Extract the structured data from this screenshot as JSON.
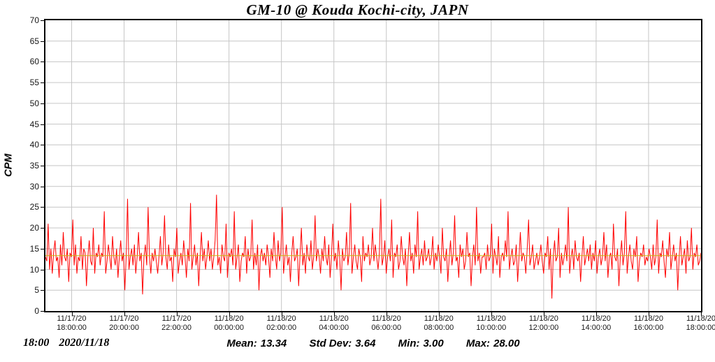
{
  "chart_data": {
    "type": "line",
    "title": "GM-10 @ Kouda Kochi-city, JAPN",
    "ylabel": "CPM",
    "ylim": [
      0,
      70
    ],
    "y_ticks": [
      0,
      5,
      10,
      15,
      20,
      25,
      30,
      35,
      40,
      45,
      50,
      55,
      60,
      65,
      70
    ],
    "grid": true,
    "x_axis": {
      "span_hours": 25,
      "first_tick_offset_hours": 1,
      "tick_step_hours": 2,
      "range": [
        "11/17/20 17:00:00",
        "11/18/20 18:00:00"
      ]
    },
    "x_ticks": [
      {
        "date": "11/17/20",
        "time": "18:00:00"
      },
      {
        "date": "11/17/20",
        "time": "20:00:00"
      },
      {
        "date": "11/17/20",
        "time": "22:00:00"
      },
      {
        "date": "11/18/20",
        "time": "00:00:00"
      },
      {
        "date": "11/18/20",
        "time": "02:00:00"
      },
      {
        "date": "11/18/20",
        "time": "04:00:00"
      },
      {
        "date": "11/18/20",
        "time": "06:00:00"
      },
      {
        "date": "11/18/20",
        "time": "08:00:00"
      },
      {
        "date": "11/18/20",
        "time": "10:00:00"
      },
      {
        "date": "11/18/20",
        "time": "12:00:00"
      },
      {
        "date": "11/18/20",
        "time": "14:00:00"
      },
      {
        "date": "11/18/20",
        "time": "16:00:00"
      },
      {
        "date": "11/18/20",
        "time": "18:00:00"
      }
    ],
    "colors": {
      "trace": "#ff0000",
      "mean_line": "#c9b50a",
      "grid": "#c6c6c6",
      "axis": "#000000"
    },
    "mean_line": {
      "value": 13.34,
      "color": "#c9b50a"
    },
    "series": [
      {
        "name": "CPM",
        "color": "#ff0000",
        "values": [
          13,
          12,
          21,
          10,
          15,
          9,
          14,
          17,
          12,
          13,
          8,
          16,
          11,
          19,
          13,
          12,
          15,
          7,
          14,
          13,
          22,
          11,
          16,
          9,
          13,
          12,
          18,
          10,
          15,
          14,
          6,
          13,
          17,
          12,
          11,
          20,
          9,
          14,
          13,
          16,
          11,
          14,
          13,
          24,
          9,
          12,
          16,
          13,
          10,
          18,
          13,
          11,
          15,
          8,
          13,
          17,
          12,
          14,
          5,
          13,
          27,
          10,
          13,
          15,
          11,
          16,
          9,
          13,
          19,
          12,
          14,
          4,
          13,
          16,
          11,
          25,
          13,
          9,
          14,
          12,
          15,
          12,
          9,
          13,
          18,
          11,
          14,
          23,
          13,
          10,
          16,
          12,
          13,
          7,
          15,
          13,
          20,
          9,
          12,
          14,
          11,
          17,
          13,
          8,
          15,
          12,
          26,
          10,
          13,
          16,
          11,
          14,
          6,
          13,
          19,
          12,
          15,
          10,
          13,
          17,
          12,
          15,
          10,
          13,
          17,
          28,
          11,
          13,
          9,
          16,
          13,
          12,
          21,
          8,
          14,
          13,
          15,
          11,
          24,
          10,
          13,
          16,
          7,
          12,
          14,
          13,
          18,
          9,
          15,
          12,
          13,
          22,
          10,
          14,
          11,
          16,
          5,
          13,
          15,
          12,
          14,
          11,
          16,
          13,
          8,
          15,
          12,
          19,
          13,
          10,
          17,
          12,
          14,
          25,
          9,
          13,
          16,
          11,
          13,
          7,
          14,
          18,
          12,
          13,
          15,
          6,
          13,
          20,
          11,
          14,
          9,
          16,
          13,
          12,
          17,
          10,
          13,
          23,
          12,
          15,
          13,
          9,
          15,
          12,
          18,
          13,
          11,
          16,
          8,
          13,
          21,
          12,
          14,
          10,
          17,
          13,
          5,
          15,
          12,
          13,
          19,
          11,
          14,
          26,
          9,
          13,
          16,
          12,
          10,
          15,
          13,
          7,
          18,
          12,
          14,
          13,
          16,
          11,
          13,
          20,
          12,
          16,
          13,
          10,
          14,
          27,
          11,
          13,
          17,
          9,
          13,
          15,
          12,
          22,
          8,
          14,
          13,
          16,
          10,
          12,
          18,
          13,
          11,
          15,
          6,
          13,
          19,
          12,
          14,
          9,
          16,
          13,
          24,
          10,
          13,
          15,
          11,
          17,
          12,
          13,
          15,
          11,
          13,
          18,
          10,
          14,
          12,
          16,
          13,
          9,
          20,
          13,
          12,
          15,
          7,
          13,
          17,
          11,
          14,
          23,
          12,
          13,
          8,
          16,
          13,
          15,
          10,
          12,
          19,
          13,
          14,
          6,
          13,
          16,
          11,
          25,
          12,
          14,
          9,
          13,
          13,
          14,
          10,
          16,
          12,
          13,
          21,
          9,
          15,
          13,
          11,
          18,
          8,
          13,
          14,
          12,
          17,
          13,
          24,
          10,
          13,
          15,
          11,
          12,
          16,
          7,
          13,
          19,
          12,
          14,
          13,
          9,
          15,
          22,
          11,
          13,
          16,
          10,
          12,
          14,
          11,
          13,
          16,
          12,
          9,
          14,
          13,
          18,
          10,
          15,
          3,
          13,
          17,
          12,
          13,
          20,
          8,
          14,
          11,
          13,
          16,
          12,
          25,
          9,
          13,
          15,
          10,
          17,
          13,
          12,
          14,
          7,
          13,
          18,
          11,
          13,
          15,
          12,
          16,
          10,
          14,
          12,
          17,
          9,
          13,
          15,
          11,
          13,
          19,
          12,
          16,
          8,
          13,
          14,
          10,
          21,
          13,
          12,
          15,
          6,
          13,
          17,
          11,
          14,
          24,
          9,
          13,
          16,
          12,
          10,
          15,
          13,
          18,
          7,
          12,
          14,
          13,
          16,
          11,
          13,
          12,
          15,
          13,
          10,
          16,
          11,
          13,
          22,
          9,
          14,
          13,
          17,
          12,
          8,
          15,
          13,
          19,
          10,
          13,
          16,
          12,
          14,
          5,
          13,
          18,
          11,
          13,
          15,
          9,
          17,
          12,
          13,
          20,
          10,
          14,
          13,
          16,
          11,
          12,
          14
        ]
      }
    ],
    "stats_caption": "Mean: 13.34  Std Dev: 3.64  Min: 3.00  Max: 28.00"
  },
  "footer": {
    "time": "18:00",
    "date": "2020/11/18",
    "stats": {
      "mean": {
        "label": "Mean:",
        "value": "13.34"
      },
      "std": {
        "label": "Std Dev:",
        "value": "3.64"
      },
      "min": {
        "label": "Min:",
        "value": "3.00"
      },
      "max": {
        "label": "Max:",
        "value": "28.00"
      }
    }
  }
}
